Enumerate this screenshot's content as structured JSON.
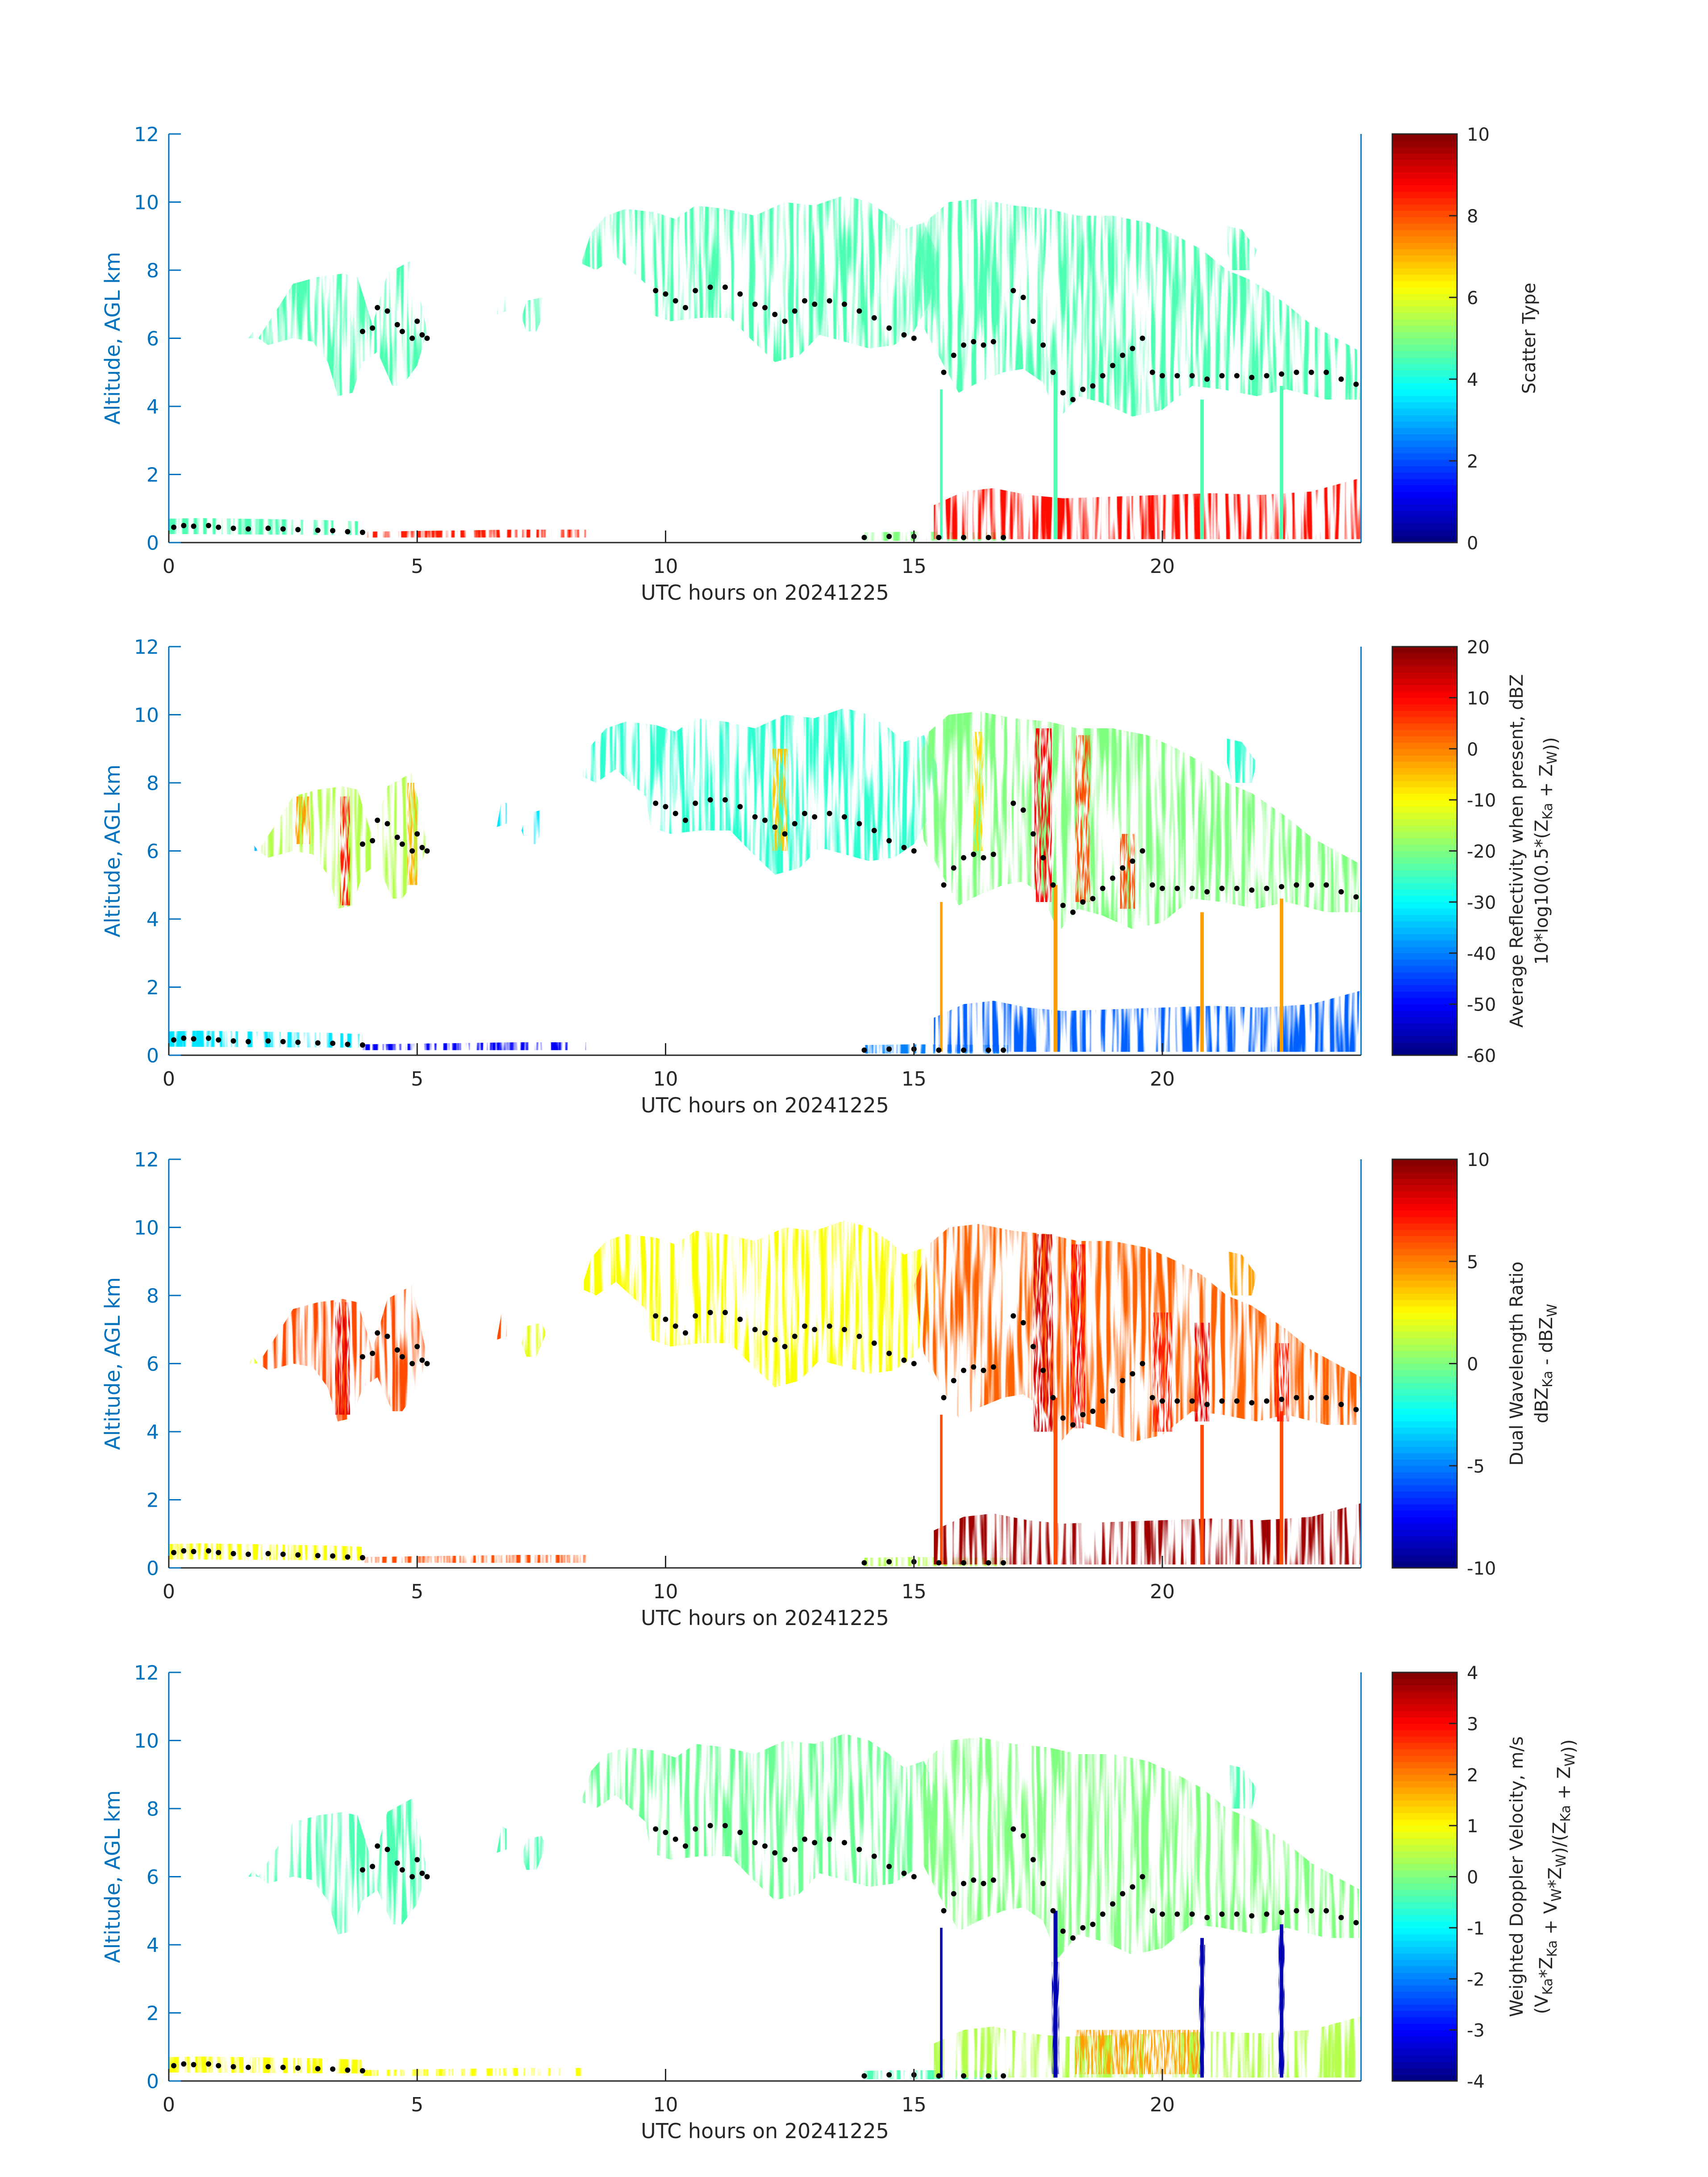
{
  "chart_data": [
    {
      "type": "heatmap",
      "xlabel": "UTC hours on 20241225",
      "ylabel": "Altitude, AGL km",
      "xlim": [
        0,
        24
      ],
      "ylim": [
        0,
        12
      ],
      "xticks": [
        0,
        5,
        10,
        15,
        20
      ],
      "yticks": [
        0,
        2,
        4,
        6,
        8,
        10,
        12
      ],
      "colorbar": {
        "label_lines": [
          "Scatter Type"
        ],
        "range": [
          0,
          10
        ],
        "ticks": [
          0,
          2,
          4,
          6,
          8,
          10
        ]
      },
      "colormap": "jet",
      "mask": "clouds",
      "colors": {
        "ice": "#4df2d9",
        "surface": "#ff4a1c"
      },
      "black_dots": "cloud-top estimate"
    },
    {
      "type": "heatmap",
      "xlabel": "UTC hours on 20241225",
      "ylabel": "Altitude, AGL km",
      "xlim": [
        0,
        24
      ],
      "ylim": [
        0,
        12
      ],
      "xticks": [
        0,
        5,
        10,
        15,
        20
      ],
      "yticks": [
        0,
        2,
        4,
        6,
        8,
        10,
        12
      ],
      "colorbar": {
        "label_lines": [
          "Average Reflectivity when present, dBZ",
          "10*log10(0.5*(Z_Ka + Z_W))"
        ],
        "range": [
          -60,
          20
        ],
        "ticks": [
          -60,
          -50,
          -40,
          -30,
          -20,
          -10,
          0,
          10,
          20
        ]
      },
      "colormap": "jet",
      "mask": "clouds",
      "field": "reflectivity"
    },
    {
      "type": "heatmap",
      "xlabel": "UTC hours on 20241225",
      "ylabel": "Altitude, AGL km",
      "xlim": [
        0,
        24
      ],
      "ylim": [
        0,
        12
      ],
      "xticks": [
        0,
        5,
        10,
        15,
        20
      ],
      "yticks": [
        0,
        2,
        4,
        6,
        8,
        10,
        12
      ],
      "colorbar": {
        "label_lines": [
          "Dual Wavelength Ratio",
          "dBZ_Ka - dBZ_W"
        ],
        "range": [
          -10,
          10
        ],
        "ticks": [
          -10,
          -5,
          0,
          5,
          10
        ]
      },
      "colormap": "jet",
      "mask": "clouds",
      "field": "dwr"
    },
    {
      "type": "heatmap",
      "xlabel": "UTC hours on 20241225",
      "ylabel": "Altitude, AGL km",
      "xlim": [
        0,
        24
      ],
      "ylim": [
        0,
        12
      ],
      "xticks": [
        0,
        5,
        10,
        15,
        20
      ],
      "yticks": [
        0,
        2,
        4,
        6,
        8,
        10,
        12
      ],
      "colorbar": {
        "label_lines": [
          "Weighted Doppler Velocity, m/s",
          "(V_Ka*Z_Ka + V_W*Z_W)/(Z_Ka + Z_W))"
        ],
        "range": [
          -4,
          4
        ],
        "ticks": [
          -4,
          -3,
          -2,
          -1,
          0,
          1,
          2,
          3,
          4
        ]
      },
      "colormap": "jet",
      "mask": "clouds",
      "field": "velocity"
    }
  ],
  "cloud_top_points": [
    [
      0.1,
      0.45
    ],
    [
      0.3,
      0.5
    ],
    [
      0.5,
      0.48
    ],
    [
      0.8,
      0.5
    ],
    [
      1.0,
      0.45
    ],
    [
      1.3,
      0.42
    ],
    [
      1.6,
      0.4
    ],
    [
      2.0,
      0.42
    ],
    [
      2.3,
      0.4
    ],
    [
      2.6,
      0.38
    ],
    [
      3.0,
      0.36
    ],
    [
      3.3,
      0.35
    ],
    [
      3.6,
      0.32
    ],
    [
      3.9,
      0.3
    ],
    [
      3.9,
      6.2
    ],
    [
      4.1,
      6.3
    ],
    [
      4.2,
      6.9
    ],
    [
      4.4,
      6.8
    ],
    [
      4.6,
      6.4
    ],
    [
      4.7,
      6.2
    ],
    [
      4.9,
      6.0
    ],
    [
      5.0,
      6.5
    ],
    [
      5.1,
      6.1
    ],
    [
      5.2,
      6.0
    ],
    [
      9.8,
      7.4
    ],
    [
      10.0,
      7.3
    ],
    [
      10.2,
      7.1
    ],
    [
      10.4,
      6.9
    ],
    [
      10.6,
      7.4
    ],
    [
      10.9,
      7.5
    ],
    [
      11.2,
      7.5
    ],
    [
      11.5,
      7.3
    ],
    [
      11.8,
      7.0
    ],
    [
      12.0,
      6.9
    ],
    [
      12.2,
      6.7
    ],
    [
      12.4,
      6.5
    ],
    [
      12.6,
      6.8
    ],
    [
      12.8,
      7.1
    ],
    [
      13.0,
      7.0
    ],
    [
      13.3,
      7.1
    ],
    [
      13.6,
      7.0
    ],
    [
      13.9,
      6.8
    ],
    [
      14.2,
      6.6
    ],
    [
      14.5,
      6.3
    ],
    [
      14.8,
      6.1
    ],
    [
      15.0,
      6.0
    ],
    [
      14.0,
      0.15
    ],
    [
      14.5,
      0.18
    ],
    [
      15.0,
      0.18
    ],
    [
      15.5,
      0.15
    ],
    [
      16.0,
      0.15
    ],
    [
      16.5,
      0.15
    ],
    [
      16.8,
      0.15
    ],
    [
      15.6,
      5.0
    ],
    [
      15.8,
      5.5
    ],
    [
      16.0,
      5.8
    ],
    [
      16.2,
      5.9
    ],
    [
      16.4,
      5.8
    ],
    [
      16.6,
      5.9
    ],
    [
      17.0,
      7.4
    ],
    [
      17.2,
      7.2
    ],
    [
      17.4,
      6.5
    ],
    [
      17.6,
      5.8
    ],
    [
      17.8,
      5.0
    ],
    [
      18.0,
      4.4
    ],
    [
      18.2,
      4.2
    ],
    [
      18.4,
      4.5
    ],
    [
      18.6,
      4.6
    ],
    [
      18.8,
      4.9
    ],
    [
      19.0,
      5.2
    ],
    [
      19.2,
      5.5
    ],
    [
      19.4,
      5.7
    ],
    [
      19.6,
      6.0
    ],
    [
      19.8,
      5.0
    ],
    [
      20.0,
      4.9
    ],
    [
      20.3,
      4.9
    ],
    [
      20.6,
      4.9
    ],
    [
      20.9,
      4.8
    ],
    [
      21.2,
      4.9
    ],
    [
      21.5,
      4.9
    ],
    [
      21.8,
      4.85
    ],
    [
      22.1,
      4.9
    ],
    [
      22.4,
      4.95
    ],
    [
      22.7,
      5.0
    ],
    [
      23.0,
      5.0
    ],
    [
      23.3,
      5.0
    ],
    [
      23.6,
      4.8
    ],
    [
      23.9,
      4.65
    ]
  ]
}
